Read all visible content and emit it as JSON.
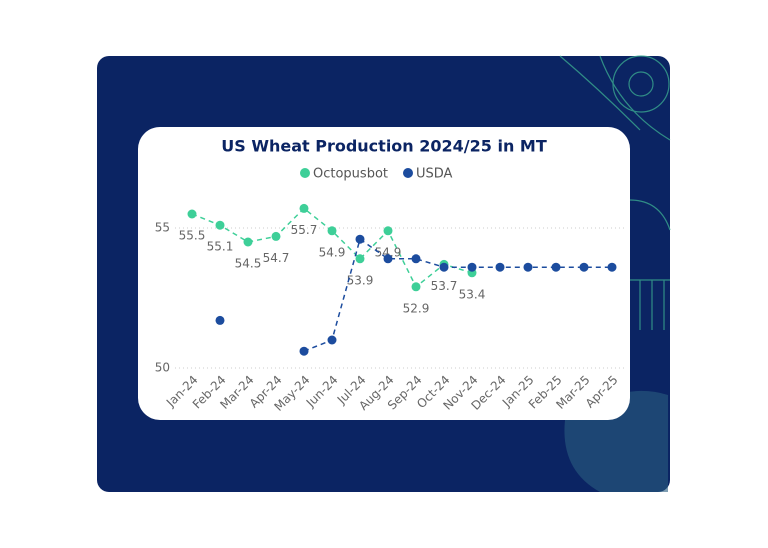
{
  "chart_data": {
    "type": "line",
    "title": "US Wheat Production 2024/25 in MT",
    "categories": [
      "Jan-24",
      "Feb-24",
      "Mar-24",
      "Apr-24",
      "May-24",
      "Jun-24",
      "Jul-24",
      "Aug-24",
      "Sep-24",
      "Oct-24",
      "Nov-24",
      "Dec-24",
      "Jan-25",
      "Feb-25",
      "Mar-25",
      "Apr-25"
    ],
    "series": [
      {
        "name": "Octopusbot",
        "color": "#3ecf98",
        "values": [
          55.5,
          55.1,
          54.5,
          54.7,
          55.7,
          54.9,
          53.9,
          54.9,
          52.9,
          53.7,
          53.4,
          null,
          null,
          null,
          null,
          null
        ]
      },
      {
        "name": "USDA",
        "color": "#1c4c9e",
        "values": [
          null,
          51.7,
          null,
          null,
          50.6,
          51.0,
          54.6,
          53.9,
          53.9,
          53.6,
          53.6,
          53.6,
          53.6,
          53.6,
          53.6,
          53.6
        ]
      }
    ],
    "ylim": [
      50,
      56.5
    ],
    "yticks": [
      50,
      55
    ],
    "grid": true
  }
}
